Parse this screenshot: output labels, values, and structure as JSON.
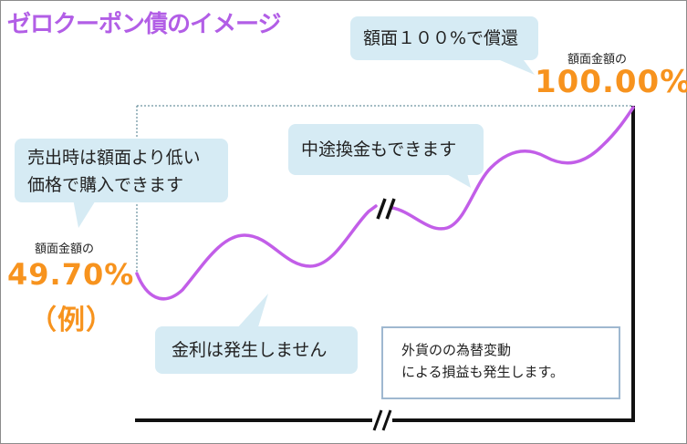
{
  "title": "ゼロクーポン債のイメージ",
  "bubbles": {
    "redeem": "額面１００%で償還",
    "buy_line1": "売出時は額面より低い",
    "buy_line2": "価格で購入できます",
    "midway": "中途換金もできます",
    "interest": "金利は発生しません"
  },
  "start": {
    "label": "額面金額の",
    "value": "49.70%",
    "example": "（例）"
  },
  "end": {
    "label": "額面金額の",
    "value": "100.00%"
  },
  "note": {
    "line1": "外貨のの為替変動",
    "line2": "による損益も発生します。"
  },
  "colors": {
    "title": "#b25ee6",
    "curve": "#c25ee8",
    "accent": "#f7931e",
    "bubble": "#d6ebf4",
    "note_border": "#9fb8d0"
  }
}
